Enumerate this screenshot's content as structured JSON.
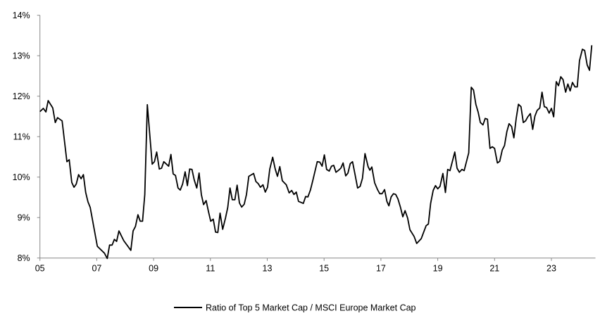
{
  "chart_data": {
    "type": "line",
    "title": "",
    "xlabel": "",
    "ylabel": "",
    "xlim": [
      2005,
      2024.55
    ],
    "ylim": [
      8,
      14
    ],
    "y_ticks": [
      8,
      9,
      10,
      11,
      12,
      13,
      14
    ],
    "y_tick_labels": [
      "8%",
      "9%",
      "10%",
      "11%",
      "12%",
      "13%",
      "14%"
    ],
    "x_ticks": [
      2005,
      2007,
      2009,
      2011,
      2013,
      2015,
      2017,
      2019,
      2021,
      2023
    ],
    "x_tick_labels": [
      "05",
      "07",
      "09",
      "11",
      "13",
      "15",
      "17",
      "19",
      "21",
      "23"
    ],
    "grid": false,
    "legend_position": "bottom",
    "line_color": "#000000",
    "series": [
      {
        "name": "Ratio of Top 5 Market Cap / MSCI Europe Market Cap",
        "x": [
          2005.0,
          2005.12,
          2005.21,
          2005.29,
          2005.45,
          2005.54,
          2005.62,
          2005.78,
          2005.95,
          2006.03,
          2006.12,
          2006.2,
          2006.28,
          2006.36,
          2006.45,
          2006.53,
          2006.61,
          2006.69,
          2006.77,
          2007.02,
          2007.27,
          2007.37,
          2007.45,
          2007.54,
          2007.62,
          2007.7,
          2007.78,
          2007.95,
          2008.2,
          2008.28,
          2008.36,
          2008.45,
          2008.53,
          2008.61,
          2008.69,
          2008.78,
          2008.95,
          2009.03,
          2009.11,
          2009.2,
          2009.28,
          2009.36,
          2009.53,
          2009.61,
          2009.69,
          2009.77,
          2009.86,
          2009.94,
          2010.02,
          2010.11,
          2010.19,
          2010.27,
          2010.35,
          2010.43,
          2010.52,
          2010.6,
          2010.68,
          2010.76,
          2010.85,
          2010.93,
          2011.01,
          2011.1,
          2011.18,
          2011.26,
          2011.34,
          2011.43,
          2011.53,
          2011.61,
          2011.69,
          2011.77,
          2011.86,
          2011.94,
          2012.02,
          2012.1,
          2012.19,
          2012.27,
          2012.35,
          2012.52,
          2012.6,
          2012.68,
          2012.76,
          2012.85,
          2012.93,
          2013.01,
          2013.09,
          2013.19,
          2013.28,
          2013.36,
          2013.44,
          2013.53,
          2013.67,
          2013.77,
          2013.86,
          2013.94,
          2014.02,
          2014.1,
          2014.27,
          2014.35,
          2014.43,
          2014.52,
          2014.6,
          2014.76,
          2014.85,
          2014.93,
          2015.01,
          2015.09,
          2015.18,
          2015.26,
          2015.34,
          2015.42,
          2015.51,
          2015.59,
          2015.67,
          2015.76,
          2015.84,
          2015.92,
          2016.0,
          2016.09,
          2016.18,
          2016.27,
          2016.35,
          2016.44,
          2016.55,
          2016.61,
          2016.68,
          2016.78,
          2016.88,
          2016.96,
          2017.04,
          2017.13,
          2017.21,
          2017.28,
          2017.36,
          2017.44,
          2017.52,
          2017.6,
          2017.69,
          2017.77,
          2017.85,
          2017.94,
          2018.02,
          2018.17,
          2018.26,
          2018.42,
          2018.59,
          2018.67,
          2018.75,
          2018.84,
          2018.92,
          2019.0,
          2019.08,
          2019.18,
          2019.27,
          2019.35,
          2019.43,
          2019.6,
          2019.68,
          2019.76,
          2019.85,
          2019.93,
          2020.09,
          2020.18,
          2020.26,
          2020.34,
          2020.42,
          2020.5,
          2020.59,
          2020.67,
          2020.75,
          2020.84,
          2020.92,
          2021.0,
          2021.1,
          2021.18,
          2021.27,
          2021.35,
          2021.43,
          2021.51,
          2021.6,
          2021.68,
          2021.76,
          2021.84,
          2021.93,
          2022.01,
          2022.09,
          2022.17,
          2022.26,
          2022.34,
          2022.42,
          2022.5,
          2022.59,
          2022.67,
          2022.75,
          2022.83,
          2022.92,
          2023.0,
          2023.08,
          2023.17,
          2023.25,
          2023.33,
          2023.41,
          2023.5,
          2023.58,
          2023.66,
          2023.74,
          2023.83,
          2023.91,
          2023.99,
          2024.09,
          2024.17,
          2024.26,
          2024.34,
          2024.42
        ],
        "values": [
          11.62,
          11.7,
          11.61,
          11.89,
          11.71,
          11.35,
          11.47,
          11.39,
          10.38,
          10.43,
          9.87,
          9.75,
          9.83,
          10.06,
          9.96,
          10.06,
          9.62,
          9.39,
          9.25,
          8.29,
          8.12,
          7.99,
          8.32,
          8.32,
          8.46,
          8.41,
          8.67,
          8.43,
          8.19,
          8.67,
          8.78,
          9.07,
          8.91,
          8.91,
          9.57,
          11.79,
          10.32,
          10.38,
          10.62,
          10.2,
          10.22,
          10.38,
          10.27,
          10.56,
          10.08,
          10.04,
          9.73,
          9.68,
          9.83,
          10.13,
          9.79,
          10.2,
          10.19,
          9.93,
          9.73,
          10.1,
          9.57,
          9.32,
          9.42,
          9.15,
          8.91,
          8.96,
          8.64,
          8.63,
          9.11,
          8.71,
          8.99,
          9.25,
          9.73,
          9.44,
          9.44,
          9.8,
          9.36,
          9.26,
          9.33,
          9.57,
          10.02,
          10.09,
          9.89,
          9.84,
          9.75,
          9.81,
          9.63,
          9.75,
          10.2,
          10.49,
          10.2,
          10.02,
          10.26,
          9.91,
          9.81,
          9.61,
          9.67,
          9.57,
          9.63,
          9.4,
          9.35,
          9.52,
          9.51,
          9.68,
          9.91,
          10.38,
          10.37,
          10.27,
          10.55,
          10.19,
          10.15,
          10.27,
          10.29,
          10.12,
          10.17,
          10.22,
          10.35,
          10.03,
          10.1,
          10.33,
          10.38,
          10.06,
          9.73,
          9.77,
          9.97,
          10.58,
          10.26,
          10.17,
          10.25,
          9.86,
          9.69,
          9.59,
          9.59,
          9.69,
          9.4,
          9.29,
          9.51,
          9.59,
          9.57,
          9.46,
          9.25,
          9.02,
          9.17,
          8.99,
          8.7,
          8.53,
          8.36,
          8.48,
          8.8,
          8.84,
          9.35,
          9.67,
          9.79,
          9.71,
          9.77,
          10.09,
          9.62,
          10.19,
          10.16,
          10.62,
          10.22,
          10.12,
          10.19,
          10.16,
          10.6,
          12.22,
          12.15,
          11.8,
          11.61,
          11.35,
          11.29,
          11.45,
          11.43,
          10.71,
          10.75,
          10.71,
          10.35,
          10.39,
          10.67,
          10.78,
          11.12,
          11.32,
          11.25,
          10.97,
          11.45,
          11.8,
          11.74,
          11.35,
          11.39,
          11.49,
          11.57,
          11.18,
          11.51,
          11.65,
          11.71,
          12.1,
          11.74,
          11.72,
          11.58,
          11.7,
          11.49,
          12.36,
          12.26,
          12.48,
          12.41,
          12.1,
          12.3,
          12.13,
          12.34,
          12.23,
          12.23,
          12.88,
          13.16,
          13.13,
          12.77,
          12.64,
          13.26
        ]
      }
    ]
  }
}
